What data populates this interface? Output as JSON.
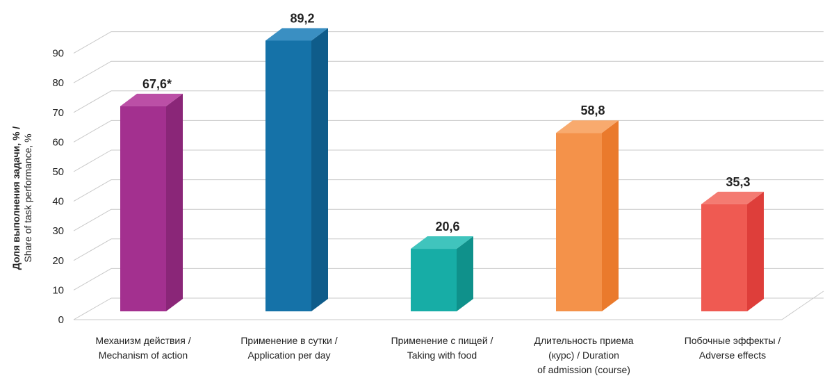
{
  "chart_data": {
    "type": "bar",
    "title": "",
    "ylabel": "Доля выполнения задачи, % / Share of task performance, %",
    "ylabel_lines": [
      "Доля выполнения задачи, % /",
      "Share of task performance, %"
    ],
    "xlabel": "",
    "ylim": [
      0,
      90
    ],
    "yticks": [
      0,
      10,
      20,
      30,
      40,
      50,
      60,
      70,
      80,
      90
    ],
    "grid": true,
    "categories": [
      "Механизм действия / Mechanism of action",
      "Применение в сутки / Application per day",
      "Применение с пищей / Taking with food",
      "Длительность приема (курс) / Duration of admission (course)",
      "Побочные эффекты / Adverse effects"
    ],
    "category_lines": [
      [
        "Механизм действия /",
        "Mechanism of action"
      ],
      [
        "Применение в сутки /",
        "Application per day"
      ],
      [
        "Применение с пищей /",
        "Taking with food"
      ],
      [
        "Длительность приема",
        "(курс) / Duration",
        "of admission (course)"
      ],
      [
        "Побочные эффекты /",
        "Adverse effects"
      ]
    ],
    "values": [
      67.6,
      89.2,
      20.6,
      58.8,
      35.3
    ],
    "data_labels": [
      "67,6*",
      "89,2",
      "20,6",
      "58,8",
      "35,3"
    ],
    "colors": [
      {
        "front": "#a3308f",
        "side": "#8a2678",
        "top": "#bb4fa6"
      },
      {
        "front": "#1572a8",
        "side": "#0f5c8a",
        "top": "#3a8fc2"
      },
      {
        "front": "#17ada6",
        "side": "#0f918b",
        "top": "#40c4bd"
      },
      {
        "front": "#f4924a",
        "side": "#ea7a2c",
        "top": "#f8aa6e"
      },
      {
        "front": "#ef5a52",
        "side": "#de3e3a",
        "top": "#f47b72"
      }
    ]
  }
}
